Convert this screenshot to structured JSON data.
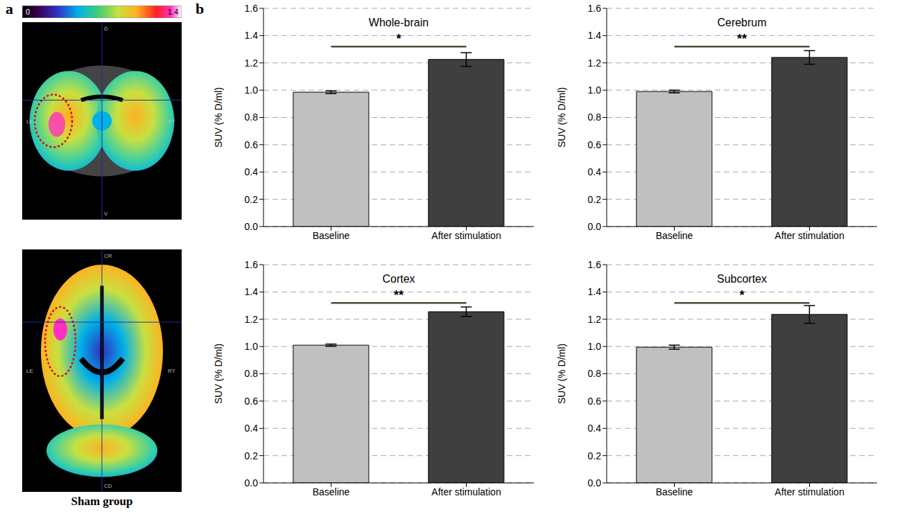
{
  "panel_labels": [
    "a",
    "b"
  ],
  "panel_a": {
    "caption": "Sham group",
    "colorbar": {
      "range": [
        0,
        1.4
      ],
      "ticks": [
        0,
        1.4
      ]
    },
    "coronal": {
      "labels": {
        "top": "D",
        "bottom": "V",
        "left": "LE",
        "right": "RT"
      }
    },
    "axial": {
      "labels": {
        "top": "CR",
        "bottom": "CD",
        "left": "LE",
        "right": "RT"
      }
    }
  },
  "chart_data": [
    {
      "type": "bar",
      "title": "Whole-brain",
      "categories": [
        "Baseline",
        "After stimulation"
      ],
      "values": [
        0.985,
        1.225
      ],
      "error": [
        0.01,
        0.05
      ],
      "colors": [
        "#c0c0c0",
        "#3f3f3f"
      ],
      "ylabel": "SUV (% D/ml)",
      "ylim": [
        0,
        1.6
      ],
      "yticks": [
        {
          "value": 0,
          "label": "0.0"
        },
        {
          "value": 0.2,
          "label": "0.2"
        },
        {
          "value": 0.4,
          "label": "0.4"
        },
        {
          "value": 0.6,
          "label": "0.6"
        },
        {
          "value": 0.8,
          "label": "0.8"
        },
        {
          "value": 1,
          "label": "1.0"
        },
        {
          "value": 1.2,
          "label": "1.2"
        },
        {
          "value": 1.4,
          "label": "1.4"
        },
        {
          "value": 1.6,
          "label": "1.6"
        }
      ],
      "grid": true,
      "significance": {
        "text": "*",
        "y": 1.32
      }
    },
    {
      "type": "bar",
      "title": "Cerebrum",
      "categories": [
        "Baseline",
        "After stimulation"
      ],
      "values": [
        0.99,
        1.24
      ],
      "error": [
        0.01,
        0.05
      ],
      "colors": [
        "#c0c0c0",
        "#3f3f3f"
      ],
      "ylabel": "SUV (% D/ml)",
      "ylim": [
        0,
        1.6
      ],
      "yticks": [
        {
          "value": 0,
          "label": "0.0"
        },
        {
          "value": 0.2,
          "label": "0.2"
        },
        {
          "value": 0.4,
          "label": "0.4"
        },
        {
          "value": 0.6,
          "label": "0.6"
        },
        {
          "value": 0.8,
          "label": "0.8"
        },
        {
          "value": 1,
          "label": "1.0"
        },
        {
          "value": 1.2,
          "label": "1.2"
        },
        {
          "value": 1.4,
          "label": "1.4"
        },
        {
          "value": 1.6,
          "label": "1.6"
        }
      ],
      "grid": true,
      "significance": {
        "text": "**",
        "y": 1.32
      }
    },
    {
      "type": "bar",
      "title": "Cortex",
      "categories": [
        "Baseline",
        "After stimulation"
      ],
      "values": [
        1.01,
        1.255
      ],
      "error": [
        0.008,
        0.035
      ],
      "colors": [
        "#c0c0c0",
        "#3f3f3f"
      ],
      "ylabel": "SUV (% D/ml)",
      "ylim": [
        0,
        1.6
      ],
      "yticks": [
        {
          "value": 0,
          "label": "0.0"
        },
        {
          "value": 0.2,
          "label": "0.2"
        },
        {
          "value": 0.4,
          "label": "0.4"
        },
        {
          "value": 0.6,
          "label": "0.6"
        },
        {
          "value": 0.8,
          "label": "0.8"
        },
        {
          "value": 1,
          "label": "1.0"
        },
        {
          "value": 1.2,
          "label": "1.2"
        },
        {
          "value": 1.4,
          "label": "1.4"
        },
        {
          "value": 1.6,
          "label": "1.6"
        }
      ],
      "grid": true,
      "significance": {
        "text": "**",
        "y": 1.32
      }
    },
    {
      "type": "bar",
      "title": "Subcortex",
      "categories": [
        "Baseline",
        "After stimulation"
      ],
      "values": [
        0.995,
        1.235
      ],
      "error": [
        0.015,
        0.065
      ],
      "colors": [
        "#c0c0c0",
        "#3f3f3f"
      ],
      "ylabel": "SUV (% D/ml)",
      "ylim": [
        0,
        1.6
      ],
      "yticks": [
        {
          "value": 0,
          "label": "0.0"
        },
        {
          "value": 0.2,
          "label": "0.2"
        },
        {
          "value": 0.4,
          "label": "0.4"
        },
        {
          "value": 0.6,
          "label": "0.6"
        },
        {
          "value": 0.8,
          "label": "0.8"
        },
        {
          "value": 1,
          "label": "1.0"
        },
        {
          "value": 1.2,
          "label": "1.2"
        },
        {
          "value": 1.4,
          "label": "1.4"
        },
        {
          "value": 1.6,
          "label": "1.6"
        }
      ],
      "grid": true,
      "significance": {
        "text": "*",
        "y": 1.32
      }
    }
  ]
}
